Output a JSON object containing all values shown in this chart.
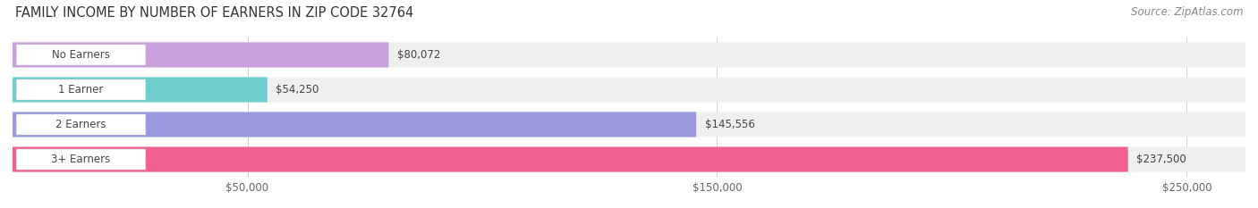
{
  "title": "FAMILY INCOME BY NUMBER OF EARNERS IN ZIP CODE 32764",
  "source": "Source: ZipAtlas.com",
  "categories": [
    "No Earners",
    "1 Earner",
    "2 Earners",
    "3+ Earners"
  ],
  "values": [
    80072,
    54250,
    145556,
    237500
  ],
  "bar_colors": [
    "#c9a0dc",
    "#6ecece",
    "#9999dd",
    "#f06090"
  ],
  "value_labels": [
    "$80,072",
    "$54,250",
    "$145,556",
    "$237,500"
  ],
  "x_ticks": [
    50000,
    150000,
    250000
  ],
  "x_tick_labels": [
    "$50,000",
    "$150,000",
    "$250,000"
  ],
  "xlim_max": 262500,
  "background_color": "#ffffff",
  "bar_bg_color": "#efefef",
  "title_fontsize": 10.5,
  "label_fontsize": 8.5,
  "tick_fontsize": 8.5,
  "source_fontsize": 8.5
}
